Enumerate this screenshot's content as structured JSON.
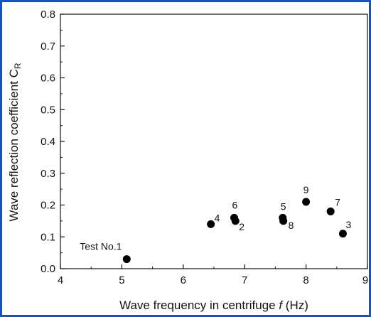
{
  "chart_data": {
    "type": "scatter",
    "xlabel_main": "Wave frequency in centrifuge ",
    "xlabel_italic": "f",
    "xlabel_unit": " (Hz)",
    "ylabel_main": "Wave reflection coefficient C",
    "ylabel_sub": "R",
    "xlim": [
      4,
      9
    ],
    "ylim": [
      0.0,
      0.8
    ],
    "x_ticks": [
      "4",
      "5",
      "6",
      "7",
      "8",
      "9"
    ],
    "y_ticks": [
      "0.0",
      "0.1",
      "0.2",
      "0.3",
      "0.4",
      "0.5",
      "0.6",
      "0.7",
      "0.8"
    ],
    "grid": false,
    "marker_color": "#000000",
    "points": [
      {
        "label": "Test No.1",
        "x": 5.08,
        "y": 0.03
      },
      {
        "label": "2",
        "x": 6.85,
        "y": 0.15
      },
      {
        "label": "3",
        "x": 8.6,
        "y": 0.11
      },
      {
        "label": "4",
        "x": 6.45,
        "y": 0.14
      },
      {
        "label": "5",
        "x": 7.62,
        "y": 0.16
      },
      {
        "label": "6",
        "x": 6.83,
        "y": 0.16
      },
      {
        "label": "7",
        "x": 8.4,
        "y": 0.18
      },
      {
        "label": "8",
        "x": 7.63,
        "y": 0.15
      },
      {
        "label": "9",
        "x": 8.0,
        "y": 0.21
      }
    ]
  }
}
